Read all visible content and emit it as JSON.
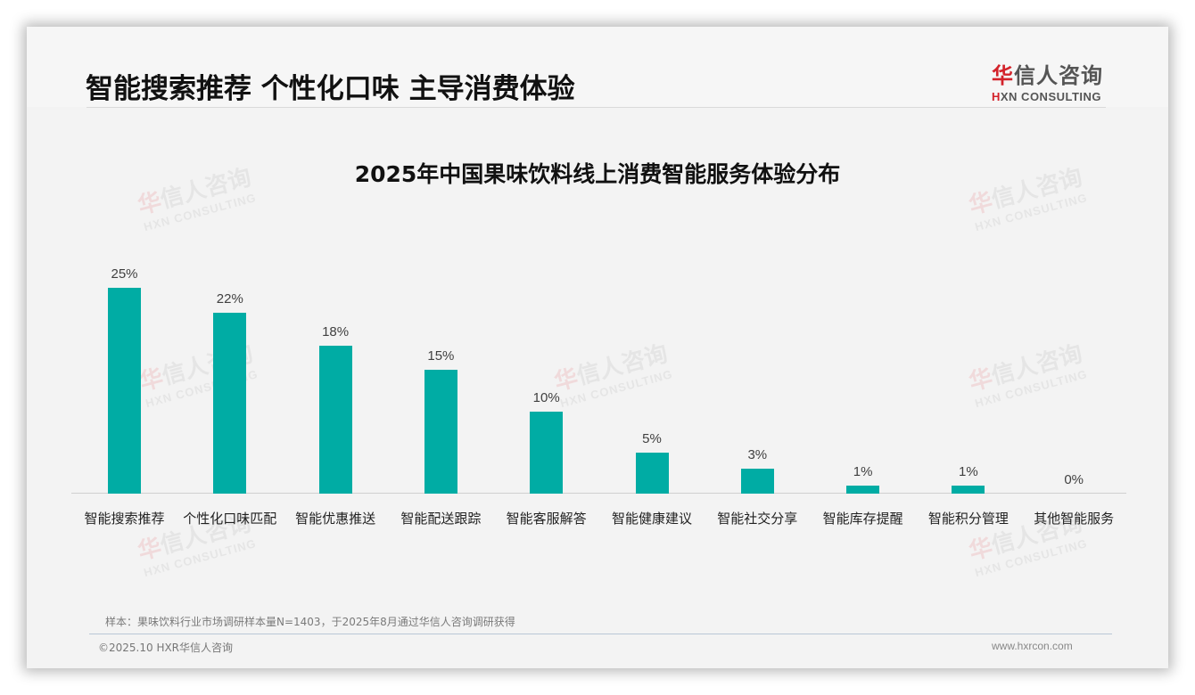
{
  "header": {
    "title": "智能搜索推荐 个性化口味 主导消费体验",
    "logo_cn_red": "华",
    "logo_cn_rest": "信人咨询",
    "logo_en_red": "H",
    "logo_en_rest": "XN CONSULTING"
  },
  "watermark": {
    "cn_red": "华",
    "cn_rest": "信人咨询",
    "en": "HXN CONSULTING"
  },
  "colors": {
    "bar": "#00aca4",
    "brand_red": "#d3222a"
  },
  "chart_data": {
    "type": "bar",
    "title": "2025年中国果味饮料线上消费智能服务体验分布",
    "categories": [
      "智能搜索推荐",
      "个性化口味匹配",
      "智能优惠推送",
      "智能配送跟踪",
      "智能客服解答",
      "智能健康建议",
      "智能社交分享",
      "智能库存提醒",
      "智能积分管理",
      "其他智能服务"
    ],
    "values": [
      25,
      22,
      18,
      15,
      10,
      5,
      3,
      1,
      1,
      0
    ],
    "value_labels": [
      "25%",
      "22%",
      "18%",
      "15%",
      "10%",
      "5%",
      "3%",
      "1%",
      "1%",
      "0%"
    ],
    "unit": "%",
    "xlabel": "",
    "ylabel": "",
    "ylim": [
      0,
      25
    ],
    "grid": false,
    "legend": null
  },
  "footer": {
    "sample_note": "样本：果味饮料行业市场调研样本量N=1403，于2025年8月通过华信人咨询调研获得",
    "copyright": "©2025.10 HXR华信人咨询",
    "website": "www.hxrcon.com"
  }
}
